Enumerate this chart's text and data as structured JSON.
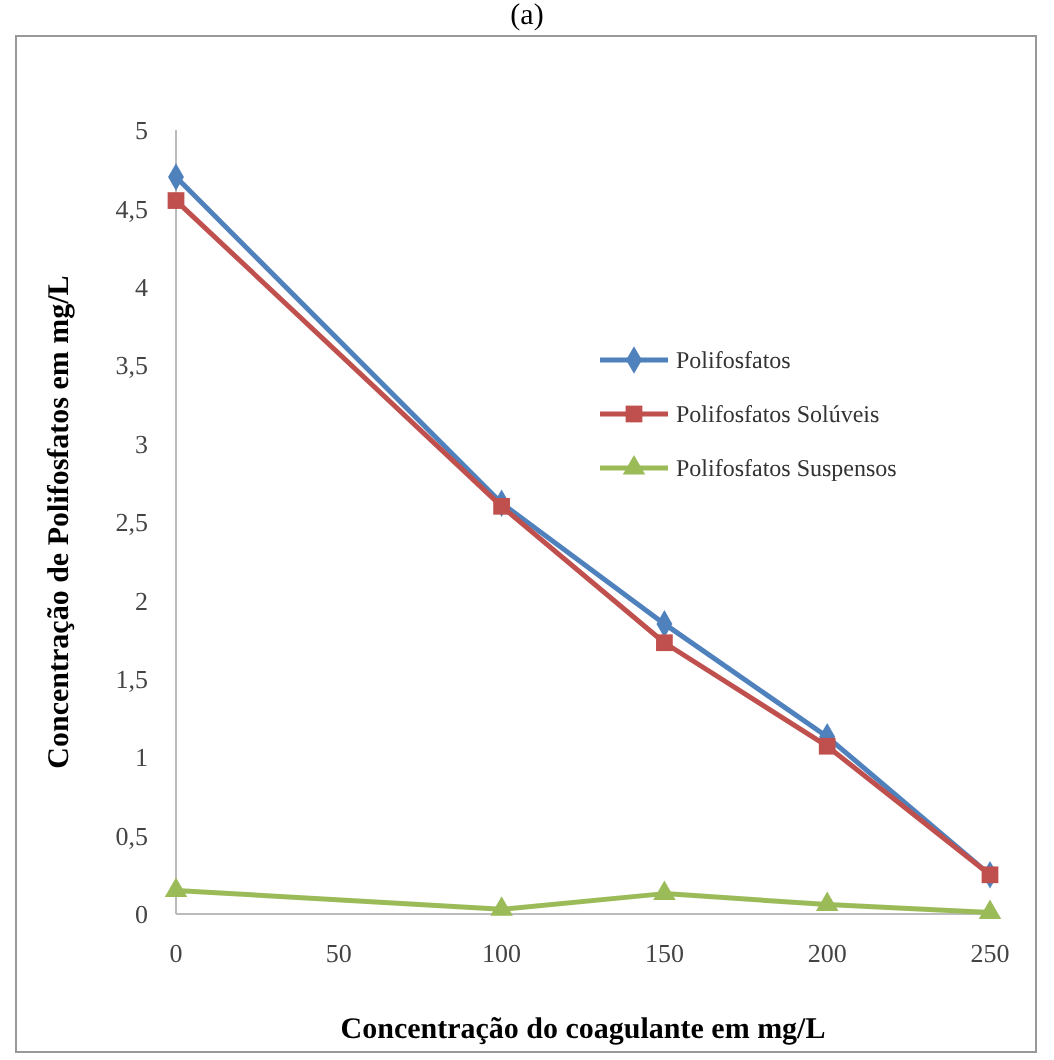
{
  "chart_data": {
    "type": "line",
    "title": "(a)",
    "xlabel": "Concentração do coagulante em mg/L",
    "ylabel": "Concentração de Polifosfatos em mg/L",
    "x": [
      0,
      100,
      150,
      200,
      250
    ],
    "series": [
      {
        "name": "Polifosfatos",
        "color": "#4f81bd",
        "marker": "diamond",
        "values": [
          4.7,
          2.62,
          1.85,
          1.13,
          0.25
        ]
      },
      {
        "name": "Polifosfatos Solúveis",
        "color": "#c0504d",
        "marker": "square",
        "values": [
          4.55,
          2.6,
          1.73,
          1.07,
          0.25
        ]
      },
      {
        "name": "Polifosfatos Suspensos",
        "color": "#9bbb59",
        "marker": "triangle",
        "values": [
          0.15,
          0.03,
          0.13,
          0.06,
          0.01
        ]
      }
    ],
    "xlim": [
      0,
      250
    ],
    "xticks": [
      0,
      50,
      100,
      150,
      200,
      250
    ],
    "ylim": [
      0,
      5
    ],
    "yticks": [
      0,
      {
        "value": 0.5,
        "label": "0,5"
      },
      1,
      {
        "value": 1.5,
        "label": "1,5"
      },
      2,
      {
        "value": 2.5,
        "label": "2,5"
      },
      3,
      {
        "value": 3.5,
        "label": "3,5"
      },
      4,
      {
        "value": 4.5,
        "label": "4,5"
      },
      5
    ],
    "grid": false,
    "legend": "right",
    "line_style": "solid"
  }
}
